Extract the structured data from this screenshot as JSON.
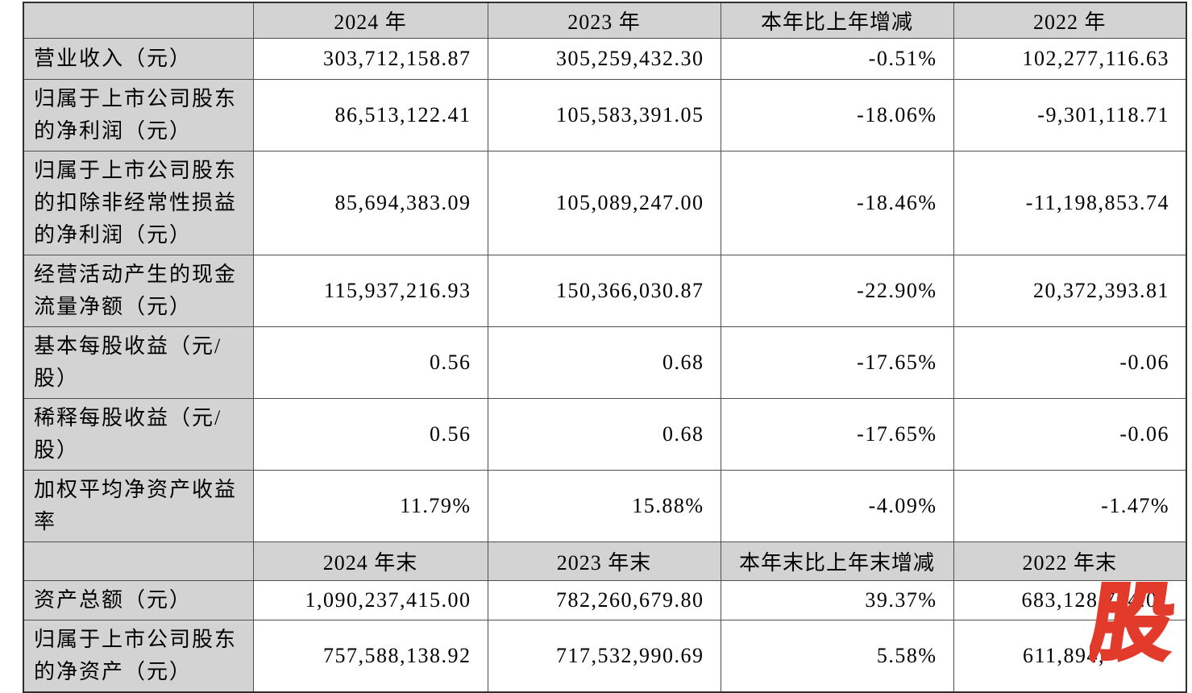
{
  "colors": {
    "header_bg": "#d3d3d3",
    "label_bg": "#d3d3d3",
    "cell_bg": "#ffffff",
    "border": "#4f4f4f",
    "text": "#000000",
    "watermark_red": "#e23b2b"
  },
  "watermark": {
    "text": "股"
  },
  "table": {
    "rows": [
      {
        "kind": "header",
        "cells": [
          "",
          "2024 年",
          "2023 年",
          "本年比上年增减",
          "2022 年"
        ]
      },
      {
        "kind": "data",
        "cells": [
          "营业收入（元）",
          "303,712,158.87",
          "305,259,432.30",
          "-0.51%",
          "102,277,116.63"
        ]
      },
      {
        "kind": "data",
        "cells": [
          "归属于上市公司股东的净利润（元）",
          "86,513,122.41",
          "105,583,391.05",
          "-18.06%",
          "-9,301,118.71"
        ]
      },
      {
        "kind": "data",
        "cells": [
          "归属于上市公司股东的扣除非经常性损益的净利润（元）",
          "85,694,383.09",
          "105,089,247.00",
          "-18.46%",
          "-11,198,853.74"
        ]
      },
      {
        "kind": "data",
        "cells": [
          "经营活动产生的现金流量净额（元）",
          "115,937,216.93",
          "150,366,030.87",
          "-22.90%",
          "20,372,393.81"
        ]
      },
      {
        "kind": "data",
        "cells": [
          "基本每股收益（元/股）",
          "0.56",
          "0.68",
          "-17.65%",
          "-0.06"
        ]
      },
      {
        "kind": "data",
        "cells": [
          "稀释每股收益（元/股）",
          "0.56",
          "0.68",
          "-17.65%",
          "-0.06"
        ]
      },
      {
        "kind": "data",
        "cells": [
          "加权平均净资产收益率",
          "11.79%",
          "15.88%",
          "-4.09%",
          "-1.47%"
        ]
      },
      {
        "kind": "header",
        "cells": [
          "",
          "2024 年末",
          "2023 年末",
          "本年末比上年末增减",
          "2022 年末"
        ]
      },
      {
        "kind": "data",
        "cells": [
          "资产总额（元）",
          "1,090,237,415.00",
          "782,260,679.80",
          "39.37%",
          "683,128,704.01"
        ]
      },
      {
        "kind": "data",
        "cells": [
          "归属于上市公司股东的净资产（元）",
          "757,588,138.92",
          "717,532,990.69",
          "5.58%",
          "611,894,"
        ]
      }
    ]
  }
}
